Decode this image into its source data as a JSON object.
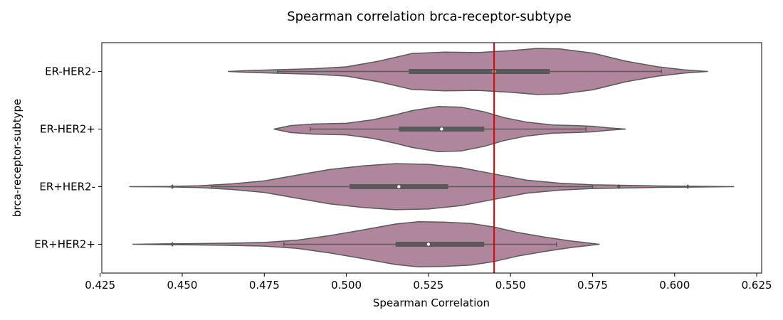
{
  "chart_data": {
    "type": "violin",
    "title": "Spearman correlation brca-receptor-subtype",
    "xlabel": "Spearman Correlation",
    "ylabel": "brca-receptor-subtype",
    "xlim": [
      0.4255,
      0.6265
    ],
    "xticks": [
      "0.425",
      "0.450",
      "0.475",
      "0.500",
      "0.525",
      "0.550",
      "0.575",
      "0.600",
      "0.625"
    ],
    "violin_color": "#b0869c",
    "line_color": "#595959",
    "reference_line": {
      "x": 0.545,
      "color": "#e00000"
    },
    "categories": [
      "ER-HER2-",
      "ER-HER2+",
      "ER+HER2-",
      "ER+HER2+"
    ],
    "violins": [
      {
        "label": "ER-HER2-",
        "min": 0.479,
        "q1": 0.519,
        "median": 0.545,
        "q3": 0.562,
        "max": 0.596,
        "outliers": [],
        "density": [
          [
            0.464,
            0.0
          ],
          [
            0.47,
            0.04
          ],
          [
            0.48,
            0.08
          ],
          [
            0.49,
            0.12
          ],
          [
            0.5,
            0.2
          ],
          [
            0.51,
            0.45
          ],
          [
            0.52,
            0.78
          ],
          [
            0.53,
            0.84
          ],
          [
            0.54,
            0.82
          ],
          [
            0.55,
            0.9
          ],
          [
            0.558,
            1.0
          ],
          [
            0.565,
            0.98
          ],
          [
            0.575,
            0.8
          ],
          [
            0.585,
            0.45
          ],
          [
            0.595,
            0.2
          ],
          [
            0.603,
            0.07
          ],
          [
            0.61,
            0.0
          ]
        ]
      },
      {
        "label": "ER-HER2+",
        "min": 0.489,
        "q1": 0.516,
        "median": 0.529,
        "q3": 0.542,
        "max": 0.573,
        "outliers": [],
        "density": [
          [
            0.478,
            0.0
          ],
          [
            0.483,
            0.15
          ],
          [
            0.49,
            0.22
          ],
          [
            0.5,
            0.25
          ],
          [
            0.508,
            0.4
          ],
          [
            0.515,
            0.62
          ],
          [
            0.52,
            0.8
          ],
          [
            0.528,
            0.98
          ],
          [
            0.535,
            0.95
          ],
          [
            0.542,
            0.75
          ],
          [
            0.548,
            0.5
          ],
          [
            0.555,
            0.3
          ],
          [
            0.563,
            0.18
          ],
          [
            0.57,
            0.15
          ],
          [
            0.575,
            0.12
          ],
          [
            0.58,
            0.05
          ],
          [
            0.585,
            0.0
          ]
        ]
      },
      {
        "label": "ER+HER2-",
        "min": 0.459,
        "q1": 0.501,
        "median": 0.516,
        "q3": 0.531,
        "max": 0.575,
        "outliers": [
          0.447,
          0.583,
          0.604
        ],
        "density": [
          [
            0.434,
            0.0
          ],
          [
            0.445,
            0.01
          ],
          [
            0.455,
            0.04
          ],
          [
            0.465,
            0.12
          ],
          [
            0.475,
            0.25
          ],
          [
            0.485,
            0.5
          ],
          [
            0.495,
            0.75
          ],
          [
            0.505,
            0.9
          ],
          [
            0.515,
            1.0
          ],
          [
            0.525,
            0.97
          ],
          [
            0.535,
            0.82
          ],
          [
            0.545,
            0.55
          ],
          [
            0.555,
            0.28
          ],
          [
            0.565,
            0.15
          ],
          [
            0.575,
            0.08
          ],
          [
            0.585,
            0.06
          ],
          [
            0.595,
            0.03
          ],
          [
            0.605,
            0.02
          ],
          [
            0.618,
            0.0
          ]
        ]
      },
      {
        "label": "ER+HER2+",
        "min": 0.481,
        "q1": 0.515,
        "median": 0.525,
        "q3": 0.542,
        "max": 0.564,
        "outliers": [
          0.447
        ],
        "density": [
          [
            0.435,
            0.0
          ],
          [
            0.445,
            0.02
          ],
          [
            0.455,
            0.03
          ],
          [
            0.465,
            0.05
          ],
          [
            0.475,
            0.08
          ],
          [
            0.485,
            0.18
          ],
          [
            0.495,
            0.38
          ],
          [
            0.505,
            0.62
          ],
          [
            0.515,
            0.88
          ],
          [
            0.522,
            0.98
          ],
          [
            0.53,
            0.96
          ],
          [
            0.538,
            0.9
          ],
          [
            0.545,
            0.75
          ],
          [
            0.552,
            0.52
          ],
          [
            0.56,
            0.32
          ],
          [
            0.568,
            0.15
          ],
          [
            0.577,
            0.0
          ]
        ]
      }
    ]
  }
}
